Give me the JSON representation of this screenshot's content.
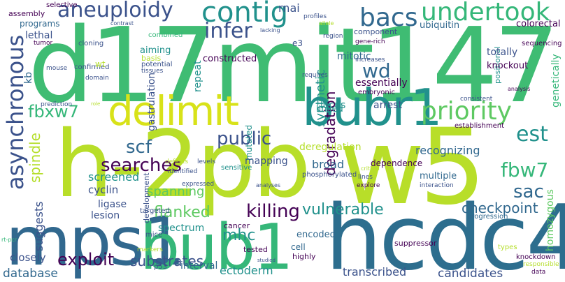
{
  "palette": {
    "dark_purple": "#440154",
    "indigo": "#3b528b",
    "blue": "#31688e",
    "teal": "#21918c",
    "green": "#35b779",
    "light_green": "#5ec962",
    "yellow_green": "#b5de2b",
    "yellow": "#fde725"
  },
  "words": [
    "d17mit147",
    "h-2pb",
    "w5",
    "hcdc4",
    "mps1",
    "bub1",
    "bubr1",
    "delimit",
    "asynchronous",
    "contig",
    "undertook",
    "aneuploidy",
    "priority",
    "bacs",
    "infer",
    "fbxw7",
    "wd",
    "scf",
    "searches",
    "est",
    "fbw7",
    "sac",
    "public",
    "spindle",
    "killing",
    "vulnerable",
    "flanked",
    "exploit",
    "mhc",
    "checkpoint",
    "substrates",
    "ectoderm",
    "transcribed",
    "candidates",
    "database",
    "recognizing",
    "mitotic",
    "rnai",
    "synthetic",
    "deregulation",
    "broad",
    "mb",
    "screened",
    "cyclin",
    "spanning",
    "spectrum",
    "interval",
    "degradation",
    "closely",
    "mapping",
    "encoded",
    "arrest",
    "genome-wide",
    "locus",
    "linked",
    "essentially",
    "mutated",
    "totally",
    "knockout",
    "constructed",
    "aiming",
    "gastrulation",
    "repeat",
    "ubiquitin",
    "colorectal",
    "component",
    "sequencing",
    "gene-rich",
    "positional",
    "genetically",
    "homozygous",
    "lethal",
    "programs",
    "assembly",
    "selective",
    "tumor",
    "cloning",
    "kb",
    "mouse",
    "confirmed",
    "wt",
    "basis",
    "potential",
    "tissues",
    "domain",
    "combined",
    "contrast",
    "lacking",
    "profiles",
    "allele",
    "region",
    "e3",
    "requires",
    "increases",
    "embryonic",
    "consistent",
    "analysis",
    "establishment",
    "dependence",
    "phosphorylated",
    "sensitive",
    "identified",
    "defects",
    "levels",
    "role",
    "prediction",
    "ligase",
    "lesion",
    "suggests",
    "targeted",
    "development",
    "expressed",
    "analyses",
    "critical",
    "lines",
    "explore",
    "interaction",
    "multiple",
    "progression",
    "cancer",
    "mice",
    "markers",
    "p53",
    "rt-pcr",
    "tested",
    "suppressor",
    "cell",
    "highly",
    "studied",
    "types",
    "knockdown",
    "responsible",
    "data"
  ]
}
